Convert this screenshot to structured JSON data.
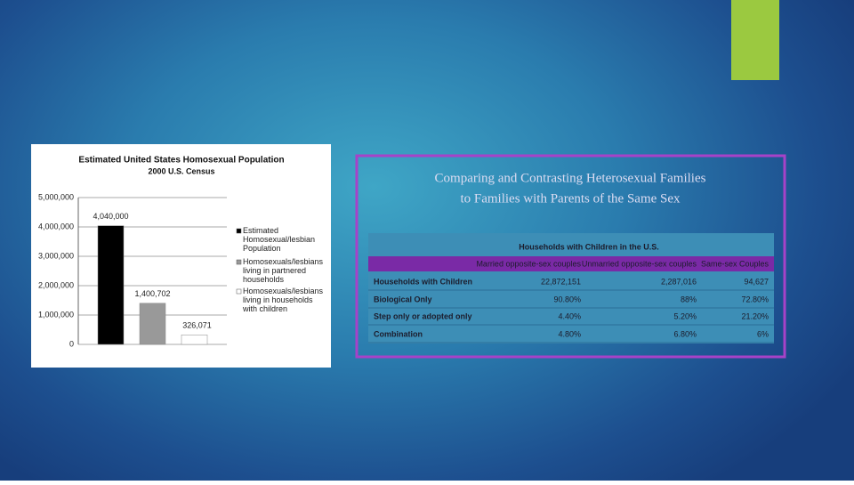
{
  "heading": [
    "Comparing and Contrasting Heterosexual Families",
    "to Families with Parents of the Same Sex"
  ],
  "chart_data": {
    "type": "bar",
    "title": "Estimated United States Homosexual Population",
    "subtitle": "2000 U.S. Census",
    "series": [
      {
        "name": "Estimated Homosexual/lesbian Population",
        "color": "#000000",
        "values": [
          4040000
        ],
        "value_labels": [
          "4,040,000"
        ]
      },
      {
        "name": "Homosexuals/lesbians living in partnered households",
        "color": "#999999",
        "values": [
          1400702
        ],
        "value_labels": [
          "1,400,702"
        ]
      },
      {
        "name": "Homosexuals/lesbians living in households with children",
        "color": "#ffffff",
        "values": [
          326071
        ],
        "value_labels": [
          "326,071"
        ]
      }
    ],
    "ylim": [
      0,
      5000000
    ],
    "yticks": [
      0,
      {
        "value": 1000000,
        "label": "1,000,000"
      },
      {
        "value": 2000000,
        "label": "2,000,000"
      },
      {
        "value": 3000000,
        "label": "3,000,000"
      },
      {
        "value": 4000000,
        "label": "4,000,000"
      },
      {
        "value": 5000000,
        "label": "5,000,000"
      }
    ],
    "grid": true,
    "legend": "right"
  },
  "table": {
    "title": "Households with Children in the U.S.",
    "header": [
      "Married opposite-sex couples",
      "Unmarried opposite-sex couples",
      "Same-sex Couples"
    ],
    "rows": [
      [
        "Households with Children",
        "22,872,151",
        "2,287,016",
        "94,627"
      ],
      [
        "Biological Only",
        "90.80%",
        "88%",
        "72.80%"
      ],
      [
        "Step only or adopted only",
        "4.40%",
        "5.20%",
        "21.20%"
      ],
      [
        "Combination",
        "4.80%",
        "6.80%",
        "6%"
      ]
    ]
  }
}
